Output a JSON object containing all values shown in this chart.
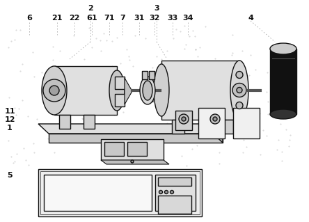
{
  "bg_color": "#ffffff",
  "text_color": "#111111",
  "label_fontsize": 8,
  "dot_color": "#aaaaaa",
  "edge_color": "#111111",
  "light_gray": "#e8e8e8",
  "mid_gray": "#cccccc",
  "dark_gray": "#888888"
}
